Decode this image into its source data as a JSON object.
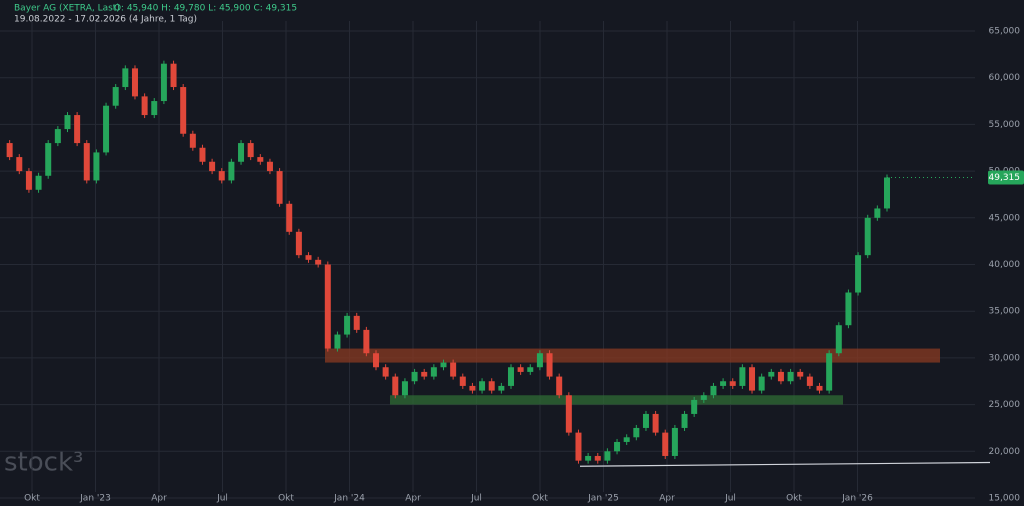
{
  "header": {
    "symbol": "Bayer AG (XETRA, Last)",
    "ohlc": "O: 45,940  H: 49,780  L: 45,900  C: 49,315",
    "period": "19.08.2022 - 17.02.2026  (4 Jahre, 1 Tag)"
  },
  "watermark": "stock³",
  "chart_data": {
    "type": "candlestick",
    "up_color": "#26a65b",
    "down_color": "#e0483a",
    "values": [
      53000,
      51500,
      50000,
      48000,
      49500,
      53000,
      54500,
      56000,
      53000,
      49000,
      52000,
      57000,
      59000,
      61000,
      58000,
      56000,
      57500,
      61500,
      59000,
      54000,
      52500,
      51000,
      50000,
      49000,
      51000,
      53000,
      51500,
      51000,
      50000,
      46500,
      43500,
      41000,
      40500,
      40000,
      31000,
      32500,
      34500,
      33000,
      30500,
      29000,
      28000,
      26000,
      27500,
      28500,
      28000,
      29000,
      29500,
      28000,
      27000,
      26500,
      27500,
      26500,
      27000,
      29000,
      28500,
      29000,
      30500,
      28000,
      26000,
      22000,
      19000,
      19500,
      19000,
      20000,
      21000,
      21500,
      22500,
      24000,
      22000,
      19500,
      22500,
      24000,
      25500,
      26000,
      27000,
      27500,
      27000,
      29000,
      26500,
      28000,
      28500,
      27500,
      28500,
      28000,
      27000,
      26500,
      30500,
      33500,
      37000,
      41000,
      45000,
      46000,
      49315
    ],
    "last_label": "49,315",
    "x_labels": [
      "Okt",
      "Jan '23",
      "Apr",
      "Jul",
      "Okt",
      "Jan '24",
      "Apr",
      "Jul",
      "Okt",
      "Jan '25",
      "Apr",
      "Jul",
      "Okt",
      "Jan '26"
    ],
    "ylim": [
      15000,
      65000
    ],
    "yticks": [
      {
        "value": 15000,
        "label": "15,000"
      },
      {
        "value": 20000,
        "label": "20,000"
      },
      {
        "value": 25000,
        "label": "25,000"
      },
      {
        "value": 30000,
        "label": "30,000"
      },
      {
        "value": 35000,
        "label": "35,000"
      },
      {
        "value": 40000,
        "label": "40,000"
      },
      {
        "value": 45000,
        "label": "45,000"
      },
      {
        "value": 50000,
        "label": "50,000"
      },
      {
        "value": 55000,
        "label": "55,000"
      },
      {
        "value": 60000,
        "label": "60,000"
      },
      {
        "value": 65000,
        "label": "65,000"
      }
    ],
    "grid": true,
    "zones": [
      {
        "from": 29500,
        "to": 31000,
        "color": "#8a3a22"
      },
      {
        "from": 25000,
        "to": 26000,
        "color": "#2f6b34"
      }
    ],
    "support_line": [
      18400,
      18800
    ]
  }
}
